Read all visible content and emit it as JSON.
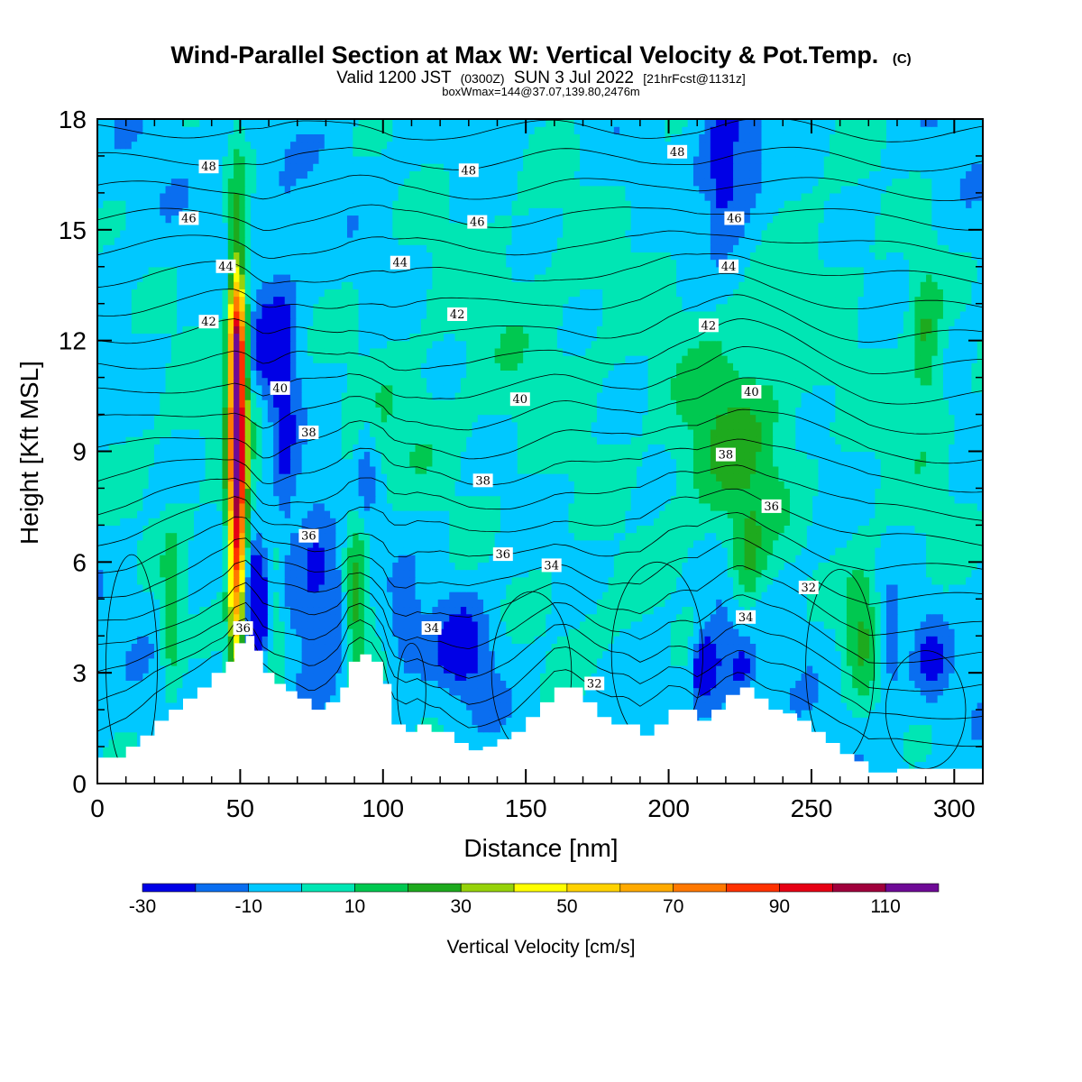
{
  "chart_data": {
    "type": "heatmap",
    "title": "Wind-Parallel Section at Max W: Vertical Velocity & Pot.Temp.",
    "title_mark": "(C)",
    "subtitle": {
      "valid": "Valid 1200 JST",
      "utc": "(0300Z)",
      "date": "SUN 3 Jul 2022",
      "forecast": "[21hrFcst@1131z]"
    },
    "subtitle2": "boxWmax=144@37.07,139.80,2476m",
    "xlabel": "Distance [nm]",
    "ylabel": "Height [Kft MSL]",
    "xlim": [
      0,
      310
    ],
    "ylim": [
      0,
      18
    ],
    "x_ticks": [
      0,
      50,
      100,
      150,
      200,
      250,
      300
    ],
    "y_ticks": [
      0,
      3,
      6,
      9,
      12,
      15,
      18
    ],
    "colorbar": {
      "label": "Vertical Velocity [cm/s]",
      "levels": [
        -30,
        -20,
        -10,
        0,
        10,
        20,
        30,
        40,
        50,
        60,
        70,
        80,
        90,
        100,
        110,
        120
      ],
      "tick_labels": [
        "-30",
        "-10",
        "10",
        "30",
        "50",
        "70",
        "90",
        "110"
      ],
      "tick_values": [
        -30,
        -10,
        10,
        30,
        50,
        70,
        90,
        110
      ],
      "colors": [
        "#0000e6",
        "#0a6ef0",
        "#00c8ff",
        "#00e6b4",
        "#00c850",
        "#1eaa1e",
        "#96d20a",
        "#ffff00",
        "#ffd200",
        "#ffaa00",
        "#ff7800",
        "#ff3200",
        "#e60014",
        "#a0003c",
        "#6e0a96"
      ]
    },
    "background_value": -5,
    "terrain": [
      [
        0,
        0.7
      ],
      [
        10,
        1.0
      ],
      [
        15,
        1.3
      ],
      [
        20,
        1.7
      ],
      [
        25,
        2.0
      ],
      [
        30,
        2.3
      ],
      [
        35,
        2.6
      ],
      [
        40,
        3.0
      ],
      [
        45,
        3.3
      ],
      [
        48,
        3.8
      ],
      [
        52,
        4.0
      ],
      [
        55,
        3.6
      ],
      [
        58,
        3.0
      ],
      [
        62,
        2.7
      ],
      [
        66,
        2.5
      ],
      [
        70,
        2.3
      ],
      [
        75,
        2.0
      ],
      [
        80,
        2.2
      ],
      [
        85,
        2.6
      ],
      [
        88,
        3.3
      ],
      [
        92,
        3.5
      ],
      [
        96,
        3.3
      ],
      [
        100,
        2.7
      ],
      [
        103,
        1.6
      ],
      [
        108,
        1.4
      ],
      [
        112,
        1.6
      ],
      [
        117,
        1.4
      ],
      [
        120,
        1.4
      ],
      [
        125,
        1.1
      ],
      [
        130,
        0.9
      ],
      [
        135,
        1.0
      ],
      [
        140,
        1.2
      ],
      [
        145,
        1.4
      ],
      [
        150,
        1.8
      ],
      [
        155,
        2.2
      ],
      [
        160,
        2.6
      ],
      [
        165,
        2.6
      ],
      [
        170,
        2.2
      ],
      [
        175,
        1.8
      ],
      [
        180,
        1.6
      ],
      [
        185,
        1.6
      ],
      [
        190,
        1.3
      ],
      [
        195,
        1.6
      ],
      [
        200,
        2.0
      ],
      [
        205,
        2.0
      ],
      [
        210,
        1.7
      ],
      [
        215,
        2.0
      ],
      [
        220,
        2.4
      ],
      [
        225,
        2.6
      ],
      [
        230,
        2.3
      ],
      [
        235,
        2.0
      ],
      [
        240,
        1.9
      ],
      [
        245,
        1.7
      ],
      [
        250,
        1.4
      ],
      [
        255,
        1.1
      ],
      [
        260,
        0.8
      ],
      [
        265,
        0.6
      ],
      [
        270,
        0.3
      ],
      [
        280,
        0.4
      ],
      [
        290,
        0.4
      ],
      [
        300,
        0.4
      ],
      [
        310,
        0.4
      ]
    ],
    "w_features": [
      {
        "x": 49,
        "y": 8.6,
        "sx": 2.2,
        "sy": 3.9,
        "amp": 115
      },
      {
        "x": 49,
        "y": 11.8,
        "sx": 1.8,
        "sy": 1.0,
        "amp": 40
      },
      {
        "x": 26,
        "y": 4.5,
        "sx": 2.5,
        "sy": 1.5,
        "amp": 22
      },
      {
        "x": 63,
        "y": 4.5,
        "sx": 2.5,
        "sy": 1.8,
        "amp": 20
      },
      {
        "x": 91,
        "y": 5.0,
        "sx": 3.0,
        "sy": 2.0,
        "amp": 25
      },
      {
        "x": 223,
        "y": 9.0,
        "sx": 15,
        "sy": 2.2,
        "amp": 24
      },
      {
        "x": 228,
        "y": 6.0,
        "sx": 4,
        "sy": 1.0,
        "amp": 18
      },
      {
        "x": 268,
        "y": 4.2,
        "sx": 5,
        "sy": 1.4,
        "amp": 24
      },
      {
        "x": 290,
        "y": 12.0,
        "sx": 4,
        "sy": 1.5,
        "amp": 22
      },
      {
        "x": 55,
        "y": 5.0,
        "sx": 3,
        "sy": 1.0,
        "amp": -42
      },
      {
        "x": 65,
        "y": 9.8,
        "sx": 4,
        "sy": 3.2,
        "amp": -25
      },
      {
        "x": 58,
        "y": 12.0,
        "sx": 4,
        "sy": 1.0,
        "amp": -18
      },
      {
        "x": 76,
        "y": 6.0,
        "sx": 4,
        "sy": 1.5,
        "amp": -20
      },
      {
        "x": 83,
        "y": 5.0,
        "sx": 3,
        "sy": 1.0,
        "amp": -18
      },
      {
        "x": 94,
        "y": 8.5,
        "sx": 2.5,
        "sy": 1.3,
        "amp": -15
      },
      {
        "x": 108,
        "y": 4.0,
        "sx": 4,
        "sy": 0.8,
        "amp": -15
      },
      {
        "x": 128,
        "y": 3.7,
        "sx": 7,
        "sy": 0.9,
        "amp": -22
      },
      {
        "x": 212,
        "y": 3.2,
        "sx": 2.5,
        "sy": 0.6,
        "amp": -35
      },
      {
        "x": 218,
        "y": 3.8,
        "sx": 4,
        "sy": 1.5,
        "amp": -15
      },
      {
        "x": 226,
        "y": 3.0,
        "sx": 3,
        "sy": 0.5,
        "amp": -20
      },
      {
        "x": 222,
        "y": 16.5,
        "sx": 9,
        "sy": 1.6,
        "amp": -22
      },
      {
        "x": 219,
        "y": 17.0,
        "sx": 2,
        "sy": 0.9,
        "amp": -30
      },
      {
        "x": 277,
        "y": 3.8,
        "sx": 3.5,
        "sy": 1.0,
        "amp": -18
      },
      {
        "x": 292,
        "y": 3.3,
        "sx": 4,
        "sy": 0.8,
        "amp": -18
      },
      {
        "x": 40,
        "y": 9.5,
        "sx": 30,
        "sy": 2.5,
        "amp": 8
      },
      {
        "x": 150,
        "y": 12,
        "sx": 35,
        "sy": 3.5,
        "amp": 10
      },
      {
        "x": 105,
        "y": 9.5,
        "sx": 12,
        "sy": 1.2,
        "amp": 8
      },
      {
        "x": 175,
        "y": 4.5,
        "sx": 15,
        "sy": 1.3,
        "amp": 8
      },
      {
        "x": 245,
        "y": 14.5,
        "sx": 25,
        "sy": 3.0,
        "amp": 8
      },
      {
        "x": 288,
        "y": 8.5,
        "sx": 18,
        "sy": 3.0,
        "amp": 7
      }
    ],
    "theta_contour_count": 22,
    "theta_labels": [
      {
        "text": "48",
        "x": 39,
        "y": 16.7
      },
      {
        "text": "48",
        "x": 130,
        "y": 16.6
      },
      {
        "text": "48",
        "x": 203,
        "y": 17.1
      },
      {
        "text": "46",
        "x": 32,
        "y": 15.3
      },
      {
        "text": "46",
        "x": 133,
        "y": 15.2
      },
      {
        "text": "46",
        "x": 223,
        "y": 15.3
      },
      {
        "text": "44",
        "x": 45,
        "y": 14.0
      },
      {
        "text": "44",
        "x": 106,
        "y": 14.1
      },
      {
        "text": "44",
        "x": 221,
        "y": 14.0
      },
      {
        "text": "42",
        "x": 39,
        "y": 12.5
      },
      {
        "text": "42",
        "x": 126,
        "y": 12.7
      },
      {
        "text": "42",
        "x": 214,
        "y": 12.4
      },
      {
        "text": "40",
        "x": 64,
        "y": 10.7
      },
      {
        "text": "40",
        "x": 148,
        "y": 10.4
      },
      {
        "text": "40",
        "x": 229,
        "y": 10.6
      },
      {
        "text": "38",
        "x": 74,
        "y": 9.5
      },
      {
        "text": "38",
        "x": 135,
        "y": 8.2
      },
      {
        "text": "38",
        "x": 220,
        "y": 8.9
      },
      {
        "text": "36",
        "x": 74,
        "y": 6.7
      },
      {
        "text": "36",
        "x": 142,
        "y": 6.2
      },
      {
        "text": "36",
        "x": 236,
        "y": 7.5
      },
      {
        "text": "36",
        "x": 51,
        "y": 4.2
      },
      {
        "text": "34",
        "x": 159,
        "y": 5.9
      },
      {
        "text": "34",
        "x": 117,
        "y": 4.2
      },
      {
        "text": "34",
        "x": 227,
        "y": 4.5
      },
      {
        "text": "32",
        "x": 249,
        "y": 5.3
      },
      {
        "text": "32",
        "x": 174,
        "y": 2.7
      }
    ]
  }
}
